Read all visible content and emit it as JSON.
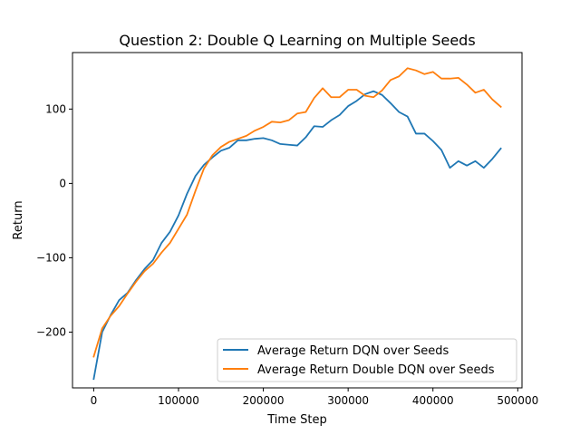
{
  "chart_data": {
    "type": "line",
    "title": "Question 2: Double Q Learning on Multiple Seeds",
    "xlabel": "Time Step",
    "ylabel": "Return",
    "xlim": [
      -25000,
      505000
    ],
    "ylim": [
      -275,
      176
    ],
    "x_ticks": [
      0,
      100000,
      200000,
      300000,
      400000,
      500000
    ],
    "y_ticks": [
      -200,
      -100,
      0,
      100
    ],
    "y_tick_labels": [
      "−200",
      "−100",
      "0",
      "100"
    ],
    "grid": false,
    "legend_position": "lower-right",
    "x": [
      0,
      10000,
      20000,
      30000,
      40000,
      50000,
      60000,
      70000,
      80000,
      90000,
      100000,
      110000,
      120000,
      130000,
      140000,
      150000,
      160000,
      170000,
      180000,
      190000,
      200000,
      210000,
      220000,
      230000,
      240000,
      250000,
      260000,
      270000,
      280000,
      290000,
      300000,
      310000,
      320000,
      330000,
      340000,
      350000,
      360000,
      370000,
      380000,
      390000,
      400000,
      410000,
      420000,
      430000,
      440000,
      450000,
      460000,
      470000,
      480000
    ],
    "series": [
      {
        "name": "Average Return DQN over Seeds",
        "color": "#1f77b4",
        "values": [
          -263,
          -200,
          -177,
          -157,
          -147,
          -130,
          -115,
          -103,
          -80,
          -65,
          -43,
          -14,
          10,
          25,
          35,
          44,
          48,
          58,
          58,
          60,
          61,
          58,
          53,
          52,
          51,
          62,
          77,
          76,
          85,
          92,
          104,
          111,
          120,
          124,
          119,
          108,
          96,
          90,
          67,
          67,
          57,
          45,
          21,
          30,
          24,
          30,
          21,
          33,
          47
        ]
      },
      {
        "name": "Average Return Double DQN over Seeds",
        "color": "#ff7f0e",
        "values": [
          -233,
          -195,
          -178,
          -165,
          -148,
          -132,
          -118,
          -108,
          -93,
          -80,
          -61,
          -42,
          -10,
          20,
          38,
          49,
          56,
          60,
          64,
          71,
          76,
          83,
          82,
          85,
          94,
          96,
          115,
          128,
          116,
          116,
          126,
          126,
          118,
          116,
          125,
          139,
          144,
          155,
          152,
          147,
          150,
          141,
          141,
          142,
          133,
          122,
          126,
          113,
          103
        ]
      }
    ]
  }
}
